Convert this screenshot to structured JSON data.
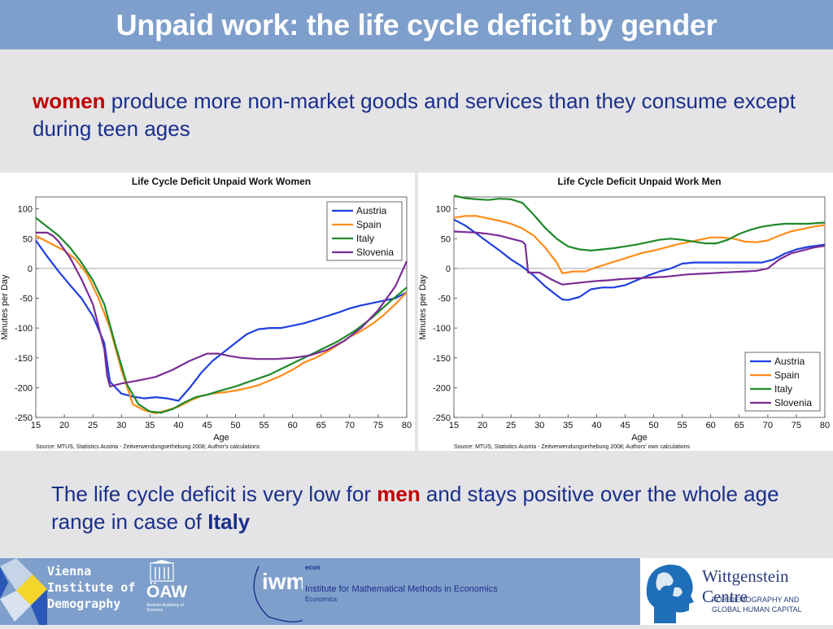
{
  "slide": {
    "title": "Unpaid work: the life cycle deficit by gender",
    "intro_highlight": "women",
    "intro_rest": " produce more non-market goods and services than they consume except during teen ages",
    "conclusion_part1": "The life cycle deficit is very low for ",
    "conclusion_highlight": "men",
    "conclusion_part2": " and stays positive over the whole age range in case of ",
    "conclusion_bold": "Italy"
  },
  "colors": {
    "title_bar": "#7e9fcb",
    "text_blue": "#1a2f8a",
    "highlight_red": "#c00000",
    "Austria": "#1f3fe0",
    "Spain": "#ff8c1a",
    "Italy": "#1f8a2a",
    "Slovenia": "#7a2d96"
  },
  "footer": {
    "vid_line1": "Vienna",
    "vid_line2": "Institute of",
    "vid_line3": "Demography",
    "oaw": "ÖAW",
    "oaw_small": "Austrian Academy of Sciences",
    "econ_logo": "iwm",
    "econ_small": "econ",
    "econ_line1": "Institute for Mathematical Methods in Economics",
    "econ_line2": "Economics",
    "wc_title": "Wittgenstein Centre",
    "wc_sub1": "FOR DEMOGRAPHY AND",
    "wc_sub2": "GLOBAL HUMAN CAPITAL"
  },
  "chart_data": [
    {
      "type": "line",
      "title": "Life Cycle Deficit Unpaid Work Women",
      "xlabel": "Age",
      "ylabel": "Minutes per Day",
      "xlim": [
        15,
        80
      ],
      "ylim": [
        -250,
        120
      ],
      "xticks": [
        15,
        20,
        25,
        30,
        35,
        40,
        45,
        50,
        55,
        60,
        65,
        70,
        75,
        80
      ],
      "yticks": [
        100,
        50,
        0,
        -50,
        -100,
        -150,
        -200,
        -250
      ],
      "legend_position": "top-right",
      "source": "Source: MTUS, Statistics Austria - Zeitverwendungserhebung 2008; Author's calculations",
      "series": [
        {
          "name": "Austria",
          "x": [
            15,
            17,
            19,
            21,
            23,
            25,
            27,
            28,
            30,
            32,
            34,
            36,
            38,
            40,
            42,
            44,
            46,
            48,
            50,
            52,
            54,
            56,
            58,
            60,
            62,
            64,
            66,
            68,
            70,
            72,
            74,
            76,
            78,
            80
          ],
          "y": [
            47,
            20,
            -5,
            -28,
            -50,
            -80,
            -125,
            -190,
            -210,
            -215,
            -218,
            -216,
            -218,
            -222,
            -200,
            -175,
            -155,
            -140,
            -125,
            -110,
            -102,
            -100,
            -100,
            -96,
            -92,
            -86,
            -80,
            -74,
            -67,
            -62,
            -58,
            -54,
            -50,
            -40
          ]
        },
        {
          "name": "Spain",
          "x": [
            15,
            18,
            20,
            22,
            24,
            26,
            28,
            30,
            32,
            34,
            36,
            38,
            40,
            42,
            44,
            46,
            48,
            50,
            52,
            54,
            56,
            58,
            60,
            62,
            64,
            66,
            68,
            70,
            72,
            74,
            76,
            78,
            80
          ],
          "y": [
            55,
            40,
            30,
            15,
            -10,
            -50,
            -100,
            -170,
            -228,
            -238,
            -243,
            -238,
            -232,
            -222,
            -214,
            -210,
            -208,
            -205,
            -201,
            -196,
            -188,
            -180,
            -170,
            -158,
            -150,
            -140,
            -128,
            -115,
            -105,
            -93,
            -78,
            -60,
            -40
          ]
        },
        {
          "name": "Italy",
          "x": [
            15,
            17,
            19,
            21,
            23,
            25,
            27,
            29,
            31,
            33,
            35,
            37,
            39,
            41,
            43,
            45,
            47,
            50,
            53,
            56,
            59,
            62,
            65,
            68,
            71,
            74,
            77,
            80
          ],
          "y": [
            85,
            70,
            55,
            35,
            10,
            -20,
            -60,
            -130,
            -195,
            -228,
            -240,
            -242,
            -236,
            -225,
            -216,
            -212,
            -206,
            -198,
            -188,
            -178,
            -164,
            -150,
            -136,
            -122,
            -104,
            -82,
            -56,
            -32
          ]
        },
        {
          "name": "Slovenia",
          "x": [
            15,
            17,
            18,
            19,
            21,
            23,
            25,
            27,
            27.5,
            28,
            30,
            33,
            36,
            39,
            42,
            45,
            47,
            49,
            51,
            54,
            57,
            60,
            63,
            66,
            69,
            72,
            75,
            78,
            80
          ],
          "y": [
            60,
            60,
            55,
            45,
            18,
            -18,
            -60,
            -135,
            -180,
            -198,
            -193,
            -188,
            -182,
            -170,
            -155,
            -143,
            -143,
            -147,
            -150,
            -152,
            -152,
            -150,
            -146,
            -137,
            -122,
            -100,
            -70,
            -30,
            12
          ]
        }
      ]
    },
    {
      "type": "line",
      "title": "Life Cycle Deficit Unpaid Work Men",
      "xlabel": "Age",
      "ylabel": "Minutes per Day",
      "xlim": [
        15,
        80
      ],
      "ylim": [
        -250,
        120
      ],
      "xticks": [
        15,
        20,
        25,
        30,
        35,
        40,
        45,
        50,
        55,
        60,
        65,
        70,
        75,
        80
      ],
      "yticks": [
        100,
        50,
        0,
        -50,
        -100,
        -150,
        -200,
        -250
      ],
      "legend_position": "bottom-right",
      "source": "Source: MTUS, Statistics Austria - Zeitverwendungserhebung 2008; Authors' own calculations",
      "series": [
        {
          "name": "Austria",
          "x": [
            15,
            17,
            19,
            21,
            23,
            25,
            27,
            29,
            31,
            33,
            34,
            35,
            37,
            39,
            41,
            43,
            45,
            47,
            49,
            51,
            53,
            55,
            57,
            59,
            61,
            63,
            65,
            67,
            69,
            71,
            73,
            75,
            77,
            80
          ],
          "y": [
            82,
            72,
            58,
            44,
            30,
            15,
            3,
            -12,
            -30,
            -45,
            -52,
            -53,
            -48,
            -35,
            -32,
            -32,
            -28,
            -20,
            -12,
            -5,
            0,
            8,
            10,
            10,
            10,
            10,
            10,
            10,
            10,
            15,
            25,
            32,
            36,
            40
          ]
        },
        {
          "name": "Spain",
          "x": [
            15,
            17,
            19,
            21,
            23,
            25,
            27,
            29,
            31,
            33,
            34,
            36,
            38,
            40,
            42,
            44,
            46,
            48,
            50,
            52,
            54,
            56,
            58,
            60,
            62,
            64,
            66,
            68,
            70,
            72,
            74,
            76,
            78,
            80
          ],
          "y": [
            85,
            88,
            88,
            84,
            80,
            75,
            67,
            55,
            35,
            10,
            -8,
            -5,
            -5,
            2,
            8,
            14,
            20,
            26,
            30,
            35,
            40,
            44,
            48,
            52,
            52,
            50,
            45,
            44,
            47,
            55,
            62,
            66,
            70,
            73
          ]
        },
        {
          "name": "Italy",
          "x": [
            15,
            17,
            19,
            21,
            23,
            25,
            27,
            29,
            31,
            33,
            35,
            37,
            39,
            41,
            43,
            45,
            47,
            49,
            51,
            53,
            55,
            57,
            59,
            61,
            63,
            65,
            67,
            69,
            71,
            73,
            75,
            77,
            80
          ],
          "y": [
            122,
            118,
            116,
            115,
            117,
            116,
            110,
            90,
            68,
            50,
            37,
            32,
            30,
            32,
            34,
            37,
            40,
            44,
            48,
            50,
            48,
            45,
            42,
            42,
            48,
            58,
            65,
            70,
            73,
            75,
            75,
            75,
            77
          ]
        },
        {
          "name": "Slovenia",
          "x": [
            15,
            17,
            19,
            21,
            23,
            25,
            27,
            27.5,
            28,
            30,
            32,
            34,
            36,
            38,
            40,
            42,
            44,
            46,
            48,
            50,
            52,
            54,
            56,
            58,
            60,
            62,
            64,
            66,
            68,
            70,
            72,
            74,
            76,
            78,
            80
          ],
          "y": [
            62,
            61,
            60,
            58,
            55,
            50,
            45,
            40,
            -7,
            -7,
            -18,
            -27,
            -25,
            -23,
            -21,
            -20,
            -18,
            -17,
            -16,
            -15,
            -14,
            -12,
            -10,
            -9,
            -8,
            -7,
            -6,
            -5,
            -4,
            0,
            15,
            25,
            30,
            35,
            38
          ]
        }
      ]
    }
  ]
}
